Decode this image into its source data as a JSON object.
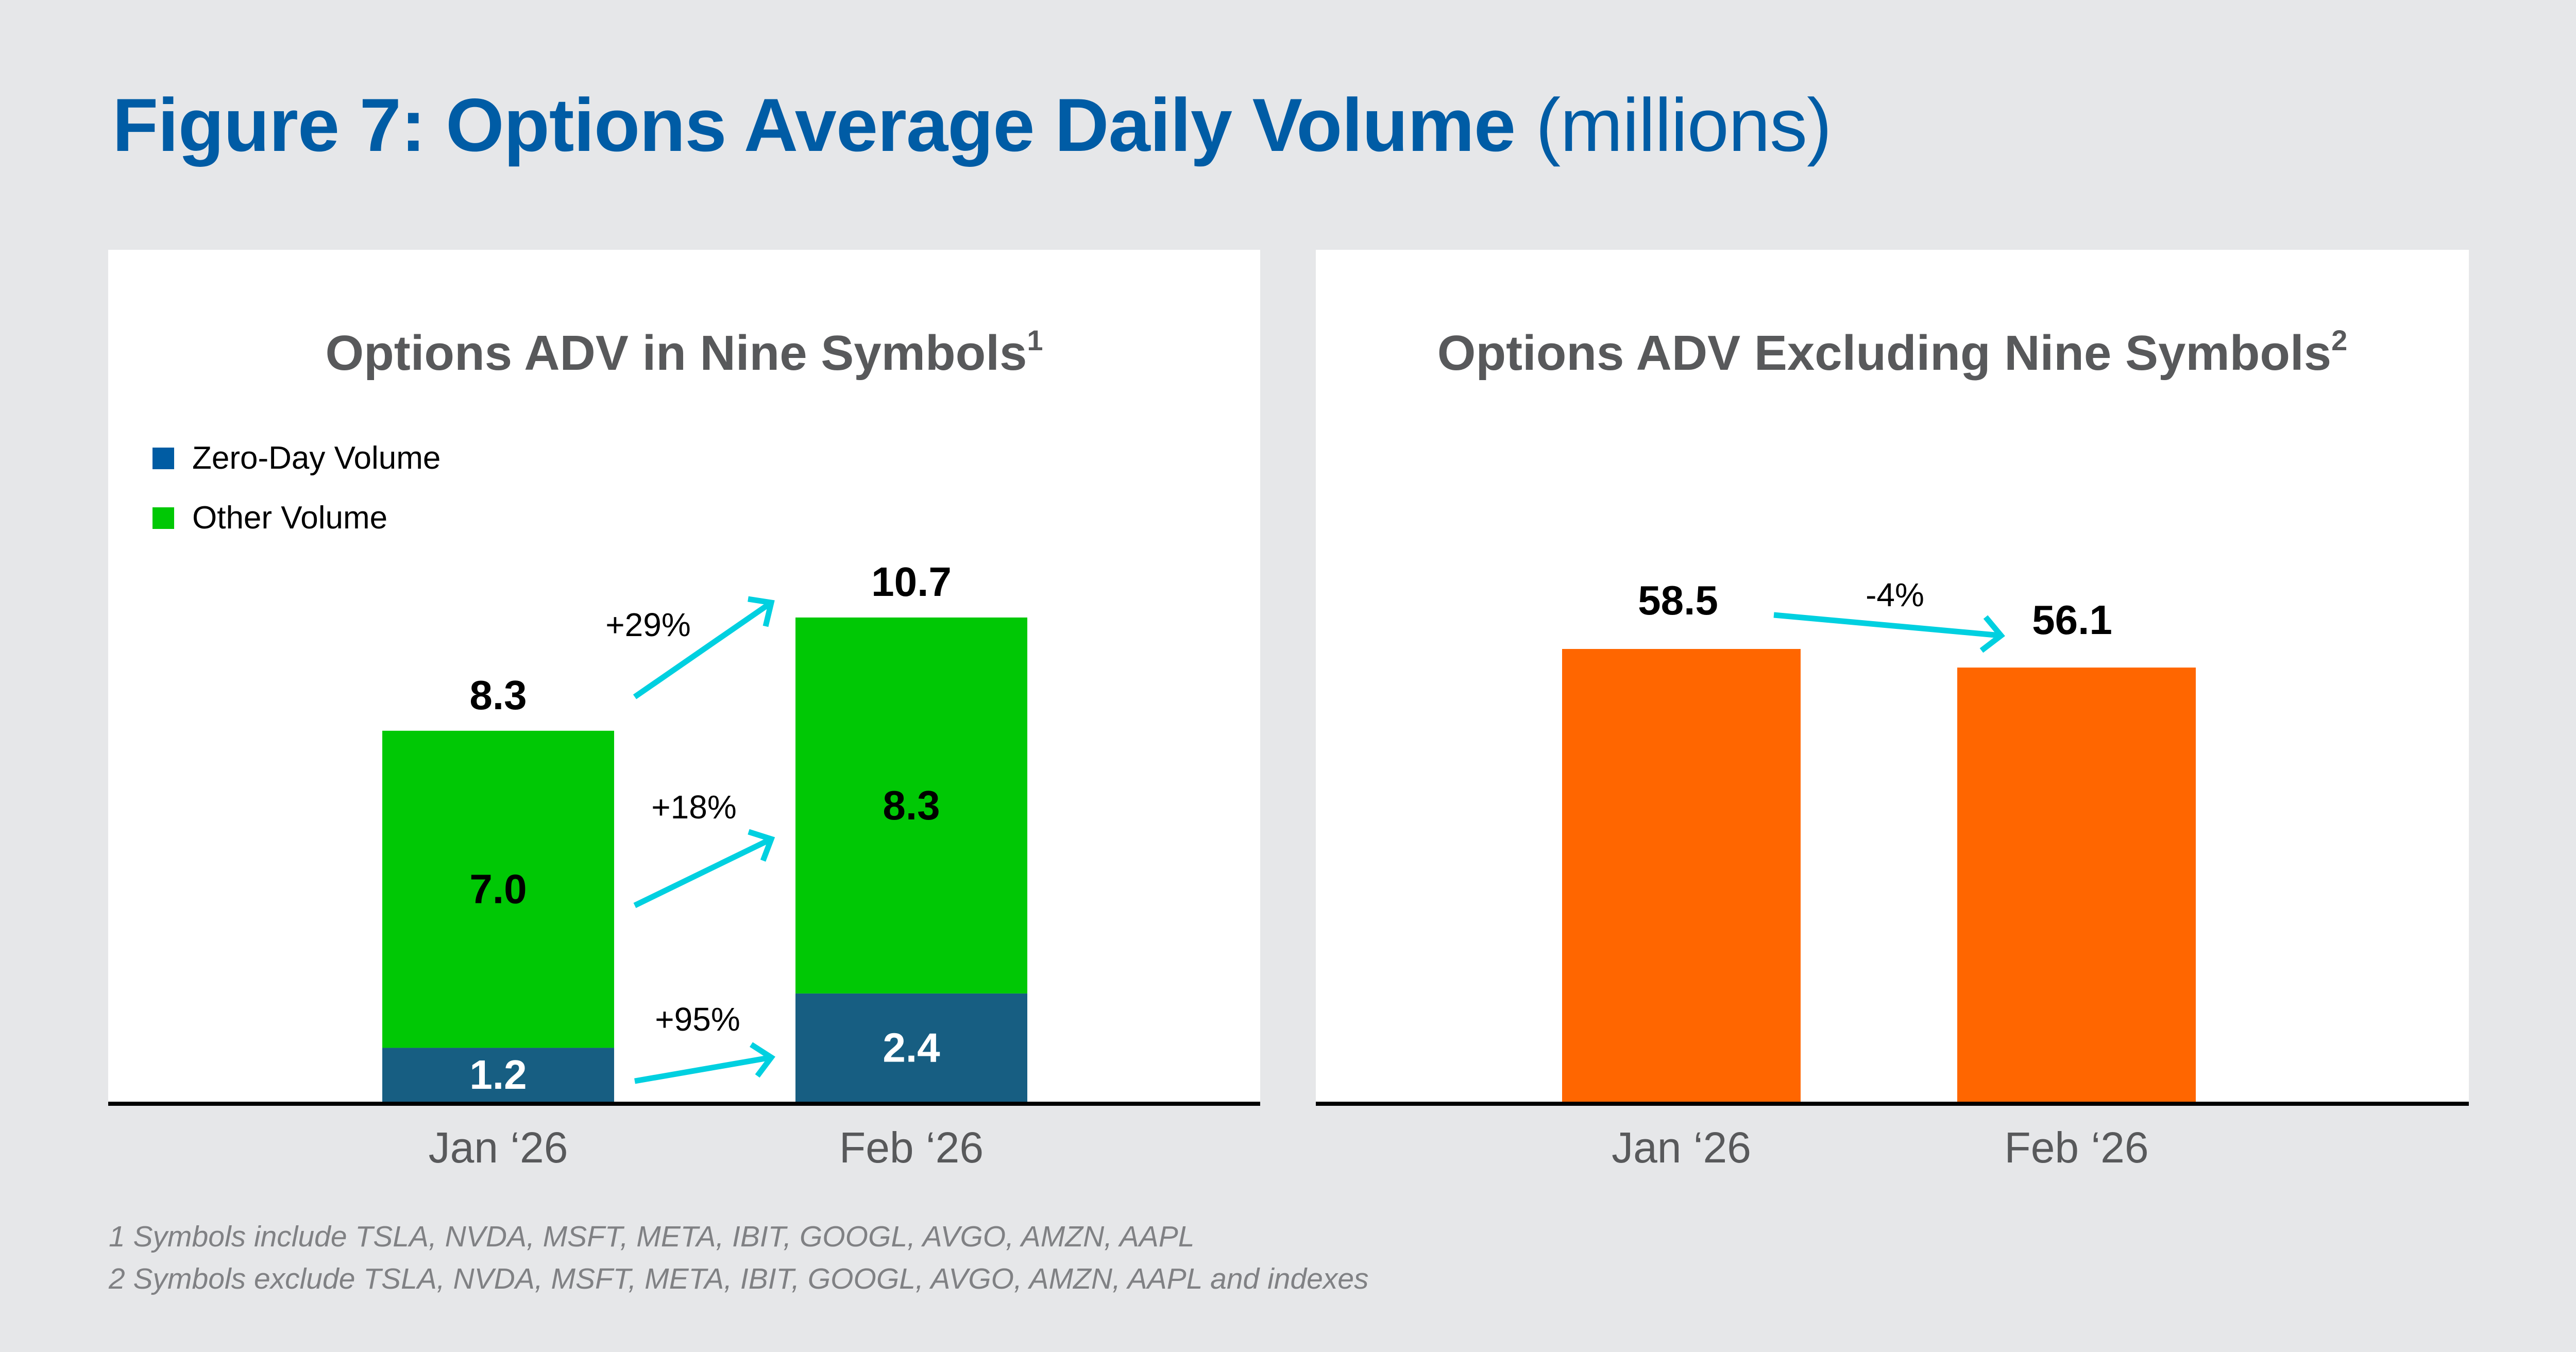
{
  "title": {
    "bold": "Figure 7: Options Average Daily Volume",
    "unit": "(millions)"
  },
  "colors": {
    "title": "#005ca5",
    "subtitle": "#58595b",
    "zero_day": "#175e82",
    "zero_day_legend": "#005ca3",
    "other": "#00c805",
    "excluding": "#ff6600",
    "arrow": "#00d0e0",
    "axis_label": "#58595b",
    "footnote": "#808184"
  },
  "chart_data": [
    {
      "type": "bar",
      "stacked": true,
      "title": "Options ADV in Nine Symbols",
      "title_superscript": "1",
      "categories": [
        "Jan ‘26",
        "Feb ‘26"
      ],
      "series": [
        {
          "name": "Zero-Day Volume",
          "values": [
            1.2,
            2.4
          ],
          "label_color": "#ffffff"
        },
        {
          "name": "Other Volume",
          "values": [
            7.0,
            8.3
          ],
          "label_color": "#000000"
        }
      ],
      "totals": [
        8.3,
        10.7
      ],
      "value_labels": {
        "zero_day": [
          "1.2",
          "2.4"
        ],
        "other": [
          "7.0",
          "8.3"
        ],
        "totals": [
          "8.3",
          "10.7"
        ]
      },
      "change_annotations": [
        {
          "label": "+29%",
          "refers_to": "total"
        },
        {
          "label": "+18%",
          "refers_to": "Other Volume"
        },
        {
          "label": "+95%",
          "refers_to": "Zero-Day Volume"
        }
      ],
      "legend": {
        "placement": "top-left",
        "entries": [
          "Zero-Day Volume",
          "Other Volume"
        ]
      },
      "xlabel": "",
      "ylabel": "",
      "ylim": [
        0,
        12
      ],
      "grid": false,
      "y_axis_visible": false
    },
    {
      "type": "bar",
      "title": "Options ADV Excluding Nine Symbols",
      "title_superscript": "2",
      "categories": [
        "Jan ‘26",
        "Feb ‘26"
      ],
      "values": [
        58.5,
        56.1
      ],
      "value_labels": [
        "58.5",
        "56.1"
      ],
      "change_annotations": [
        {
          "label": "-4%"
        }
      ],
      "xlabel": "",
      "ylabel": "",
      "ylim": [
        0,
        65
      ],
      "grid": false,
      "y_axis_visible": false
    }
  ],
  "footnotes": [
    "1 Symbols include TSLA, NVDA, MSFT, META, IBIT, GOOGL, AVGO, AMZN, AAPL",
    "2 Symbols exclude TSLA, NVDA, MSFT, META, IBIT, GOOGL, AVGO, AMZN, AAPL and indexes"
  ]
}
